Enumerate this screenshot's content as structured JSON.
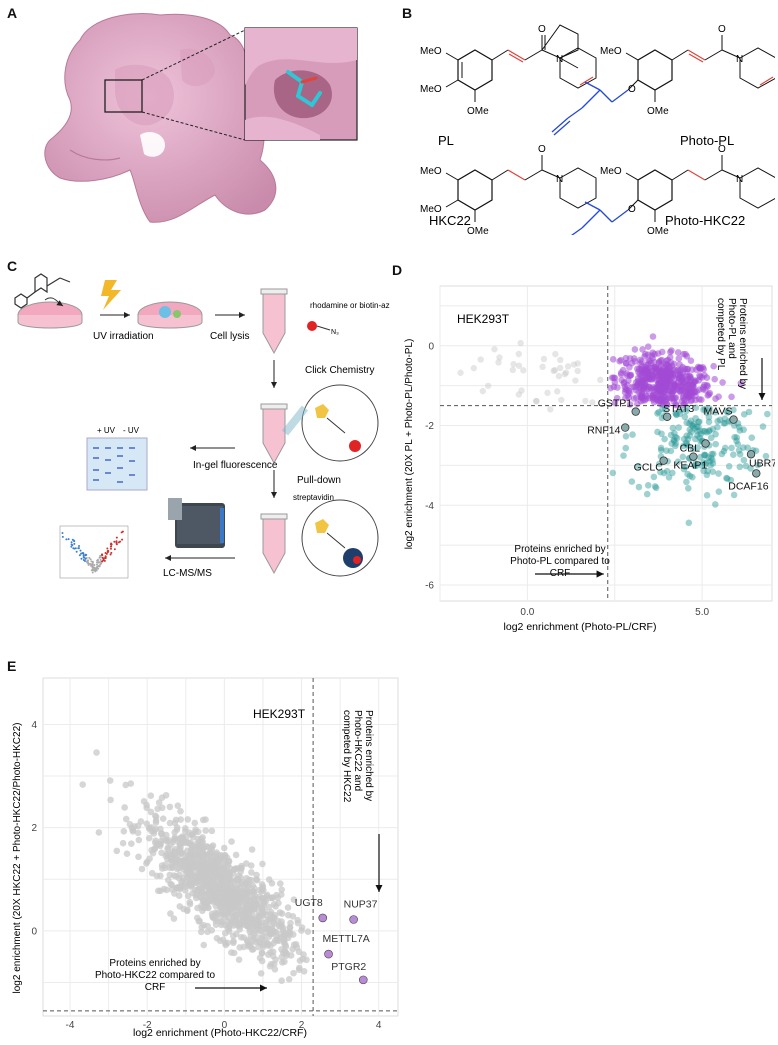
{
  "panels": {
    "a": {
      "letter": "A"
    },
    "b": {
      "letter": "B",
      "labels": {
        "pl": "PL",
        "photo_pl": "Photo-PL",
        "hkc22": "HKC22",
        "photo_hkc22": "Photo-HKC22"
      },
      "atoms": {
        "meo": "MeO",
        "ome": "OMe",
        "o": "O",
        "n": "N"
      }
    },
    "c": {
      "letter": "C",
      "steps": {
        "uv": "UV irradiation",
        "lysis": "Cell lysis",
        "reagent": "rhodamine or biotin-azide",
        "azide": "N₃",
        "click": "Click Chemistry",
        "uv_plus": "+ UV",
        "uv_minus": "- UV",
        "gel": "In-gel fluorescence",
        "pulldown": "Pull-down",
        "strep": "streptavidin",
        "lcms": "LC-MS/MS"
      }
    },
    "d": {
      "letter": "D"
    },
    "e": {
      "letter": "E"
    }
  },
  "chart_data": [
    {
      "id": "D",
      "type": "scatter",
      "cell_line": "HEK293T",
      "xlabel": "log2 enrichment (Photo-PL/CRF)",
      "ylabel": "log2 enrichment (20X PL + Photo-PL/Photo-PL)",
      "xlim": [
        -2.5,
        7
      ],
      "ylim": [
        -6.4,
        1.5
      ],
      "xticks": [
        0.0,
        2.5,
        5.0
      ],
      "xtick_labels": [
        "0.0",
        "",
        "5.0"
      ],
      "yticks": [
        0,
        -2,
        -4,
        -6
      ],
      "grid": true,
      "thresholds": {
        "x": 2.3,
        "y": -1.5
      },
      "colors": {
        "background": "#c8c8c8",
        "above": "#a24bd6",
        "hits": "#2a9a96"
      },
      "annotation_vertical": "Proteins enriched by Photo-PL and competed by PL",
      "annotation_horizontal": "Proteins enriched by Photo-PL compared to CRF",
      "labeled_points": [
        {
          "name": "GSTP1",
          "x": 3.1,
          "y": -1.65
        },
        {
          "name": "RNF14",
          "x": 2.8,
          "y": -2.05
        },
        {
          "name": "STAT3",
          "x": 4.0,
          "y": -1.78
        },
        {
          "name": "MAVS",
          "x": 5.9,
          "y": -1.85
        },
        {
          "name": "CBL",
          "x": 5.1,
          "y": -2.45
        },
        {
          "name": "GCLC",
          "x": 3.9,
          "y": -2.88
        },
        {
          "name": "KEAP1",
          "x": 4.75,
          "y": -2.78
        },
        {
          "name": "UBR7",
          "x": 6.4,
          "y": -2.72
        },
        {
          "name": "DCAF16",
          "x": 6.55,
          "y": -3.2
        }
      ]
    },
    {
      "id": "E",
      "type": "scatter",
      "cell_line": "HEK293T",
      "xlabel": "log2 enrichment (Photo-HKC22/CRF)",
      "ylabel": "log2 enrichment (20X HKC22 + Photo-HKC22/Photo-HKC22)",
      "xlim": [
        -4.7,
        4.5
      ],
      "ylim": [
        -1.65,
        4.9
      ],
      "xticks": [
        -4,
        -2,
        0,
        2,
        4
      ],
      "yticks": [
        4,
        2,
        0
      ],
      "grid": true,
      "thresholds": {
        "x": 2.3,
        "y": -1.55
      },
      "colors": {
        "background": "#c8c8c8",
        "hits": "#b98ad6"
      },
      "annotation_vertical": "Proteins enriched by Photo-HKC22 and competed by HKC22",
      "annotation_horizontal": "Proteins enriched by Photo-HKC22 compared to CRF",
      "labeled_points": [
        {
          "name": "UGT8",
          "x": 2.55,
          "y": 0.25
        },
        {
          "name": "NUP37",
          "x": 3.35,
          "y": 0.22
        },
        {
          "name": "METTL7A",
          "x": 2.7,
          "y": -0.45
        },
        {
          "name": "PTGR2",
          "x": 3.6,
          "y": -0.95
        }
      ]
    }
  ]
}
